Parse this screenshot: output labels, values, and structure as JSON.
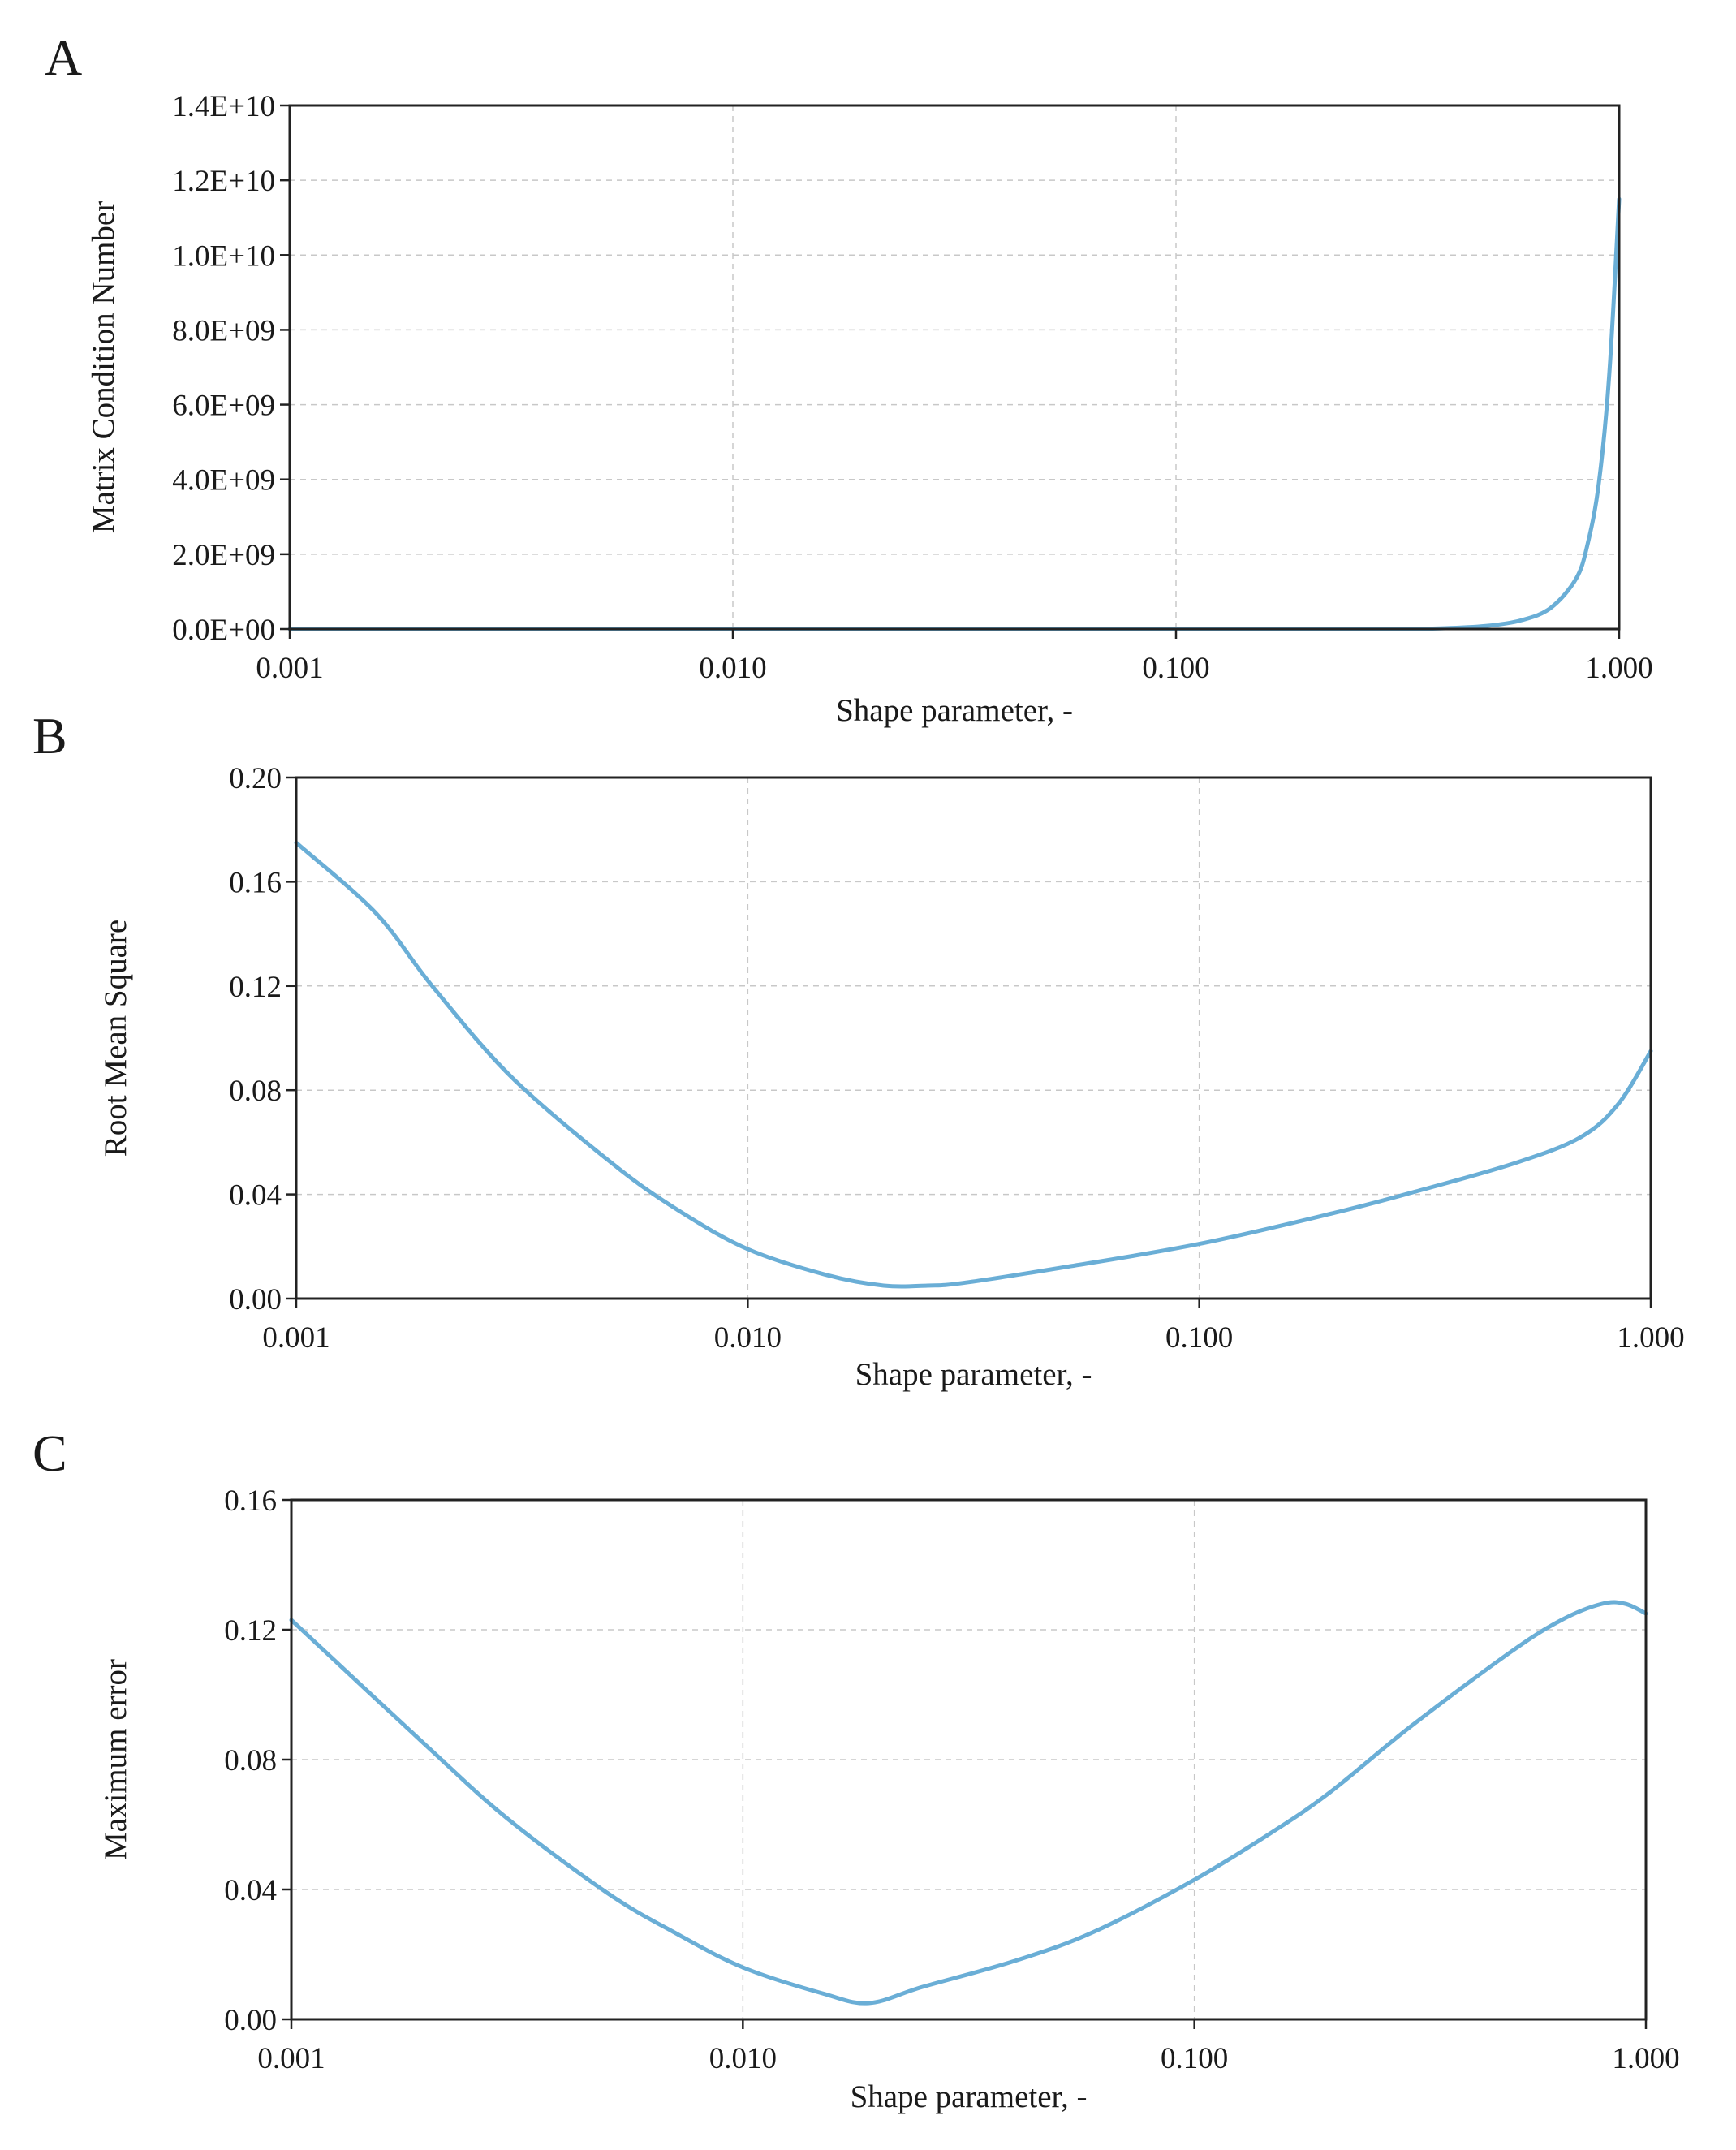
{
  "chart_data": [
    {
      "panel_label": "A",
      "type": "line",
      "title": "",
      "xlabel": "Shape parameter, -",
      "ylabel": "Matrix Condition Number",
      "x_scale": "log",
      "xlim": [
        0.001,
        1.0
      ],
      "ylim": [
        0,
        14000000000
      ],
      "grid": true,
      "legend": "none",
      "xticks": [
        0.001,
        0.01,
        0.1,
        1.0
      ],
      "xtick_labels": [
        "0.001",
        "0.010",
        "0.100",
        "1.000"
      ],
      "yticks": [
        0,
        2000000000,
        4000000000,
        6000000000,
        8000000000,
        10000000000,
        12000000000,
        14000000000
      ],
      "ytick_labels": [
        "0.0E+00",
        "2.0E+09",
        "4.0E+09",
        "6.0E+09",
        "8.0E+09",
        "1.0E+10",
        "1.2E+10",
        "1.4E+10"
      ],
      "series": [
        {
          "name": "Matrix condition number",
          "color": "#6aaed6",
          "x": [
            0.001,
            0.01,
            0.1,
            0.3,
            0.4,
            0.5,
            0.6,
            0.7,
            0.8,
            0.85,
            0.9,
            0.95,
            1.0
          ],
          "y": [
            0,
            0,
            0,
            0,
            20000000,
            80000000,
            230000000,
            560000000,
            1350000000,
            2300000000,
            3900000000,
            6800000000,
            11500000000
          ]
        }
      ]
    },
    {
      "panel_label": "B",
      "type": "line",
      "title": "",
      "xlabel": "Shape parameter, -",
      "ylabel": "Root Mean Square",
      "x_scale": "log",
      "xlim": [
        0.001,
        1.0
      ],
      "ylim": [
        0,
        0.2
      ],
      "grid": true,
      "legend": "none",
      "xticks": [
        0.001,
        0.01,
        0.1,
        1.0
      ],
      "xtick_labels": [
        "0.001",
        "0.010",
        "0.100",
        "1.000"
      ],
      "yticks": [
        0,
        0.04,
        0.08,
        0.12,
        0.16,
        0.2
      ],
      "ytick_labels": [
        "0.00",
        "0.04",
        "0.08",
        "0.12",
        "0.16",
        "0.20"
      ],
      "series": [
        {
          "name": "Root mean square",
          "color": "#6aaed6",
          "x": [
            0.001,
            0.0015,
            0.002,
            0.003,
            0.005,
            0.007,
            0.01,
            0.015,
            0.02,
            0.025,
            0.03,
            0.05,
            0.1,
            0.2,
            0.3,
            0.5,
            0.7,
            0.85,
            1.0
          ],
          "y": [
            0.175,
            0.148,
            0.12,
            0.085,
            0.052,
            0.034,
            0.019,
            0.009,
            0.005,
            0.005,
            0.006,
            0.012,
            0.021,
            0.033,
            0.041,
            0.052,
            0.062,
            0.075,
            0.095
          ]
        }
      ]
    },
    {
      "panel_label": "C",
      "type": "line",
      "title": "",
      "xlabel": "Shape parameter, -",
      "ylabel": "Maximum error",
      "x_scale": "log",
      "xlim": [
        0.001,
        1.0
      ],
      "ylim": [
        0,
        0.16
      ],
      "grid": true,
      "legend": "none",
      "xticks": [
        0.001,
        0.01,
        0.1,
        1.0
      ],
      "xtick_labels": [
        "0.001",
        "0.010",
        "0.100",
        "1.000"
      ],
      "yticks": [
        0,
        0.04,
        0.08,
        0.12,
        0.16
      ],
      "ytick_labels": [
        "0.00",
        "0.04",
        "0.08",
        "0.12",
        "0.16"
      ],
      "series": [
        {
          "name": "Maximum error",
          "color": "#6aaed6",
          "x": [
            0.001,
            0.002,
            0.003,
            0.005,
            0.007,
            0.01,
            0.015,
            0.019,
            0.025,
            0.04,
            0.06,
            0.1,
            0.15,
            0.2,
            0.3,
            0.5,
            0.65,
            0.8,
            0.9,
            1.0
          ],
          "y": [
            0.123,
            0.084,
            0.062,
            0.039,
            0.027,
            0.016,
            0.008,
            0.005,
            0.01,
            0.018,
            0.027,
            0.043,
            0.058,
            0.07,
            0.09,
            0.113,
            0.123,
            0.128,
            0.128,
            0.125
          ]
        }
      ]
    }
  ]
}
